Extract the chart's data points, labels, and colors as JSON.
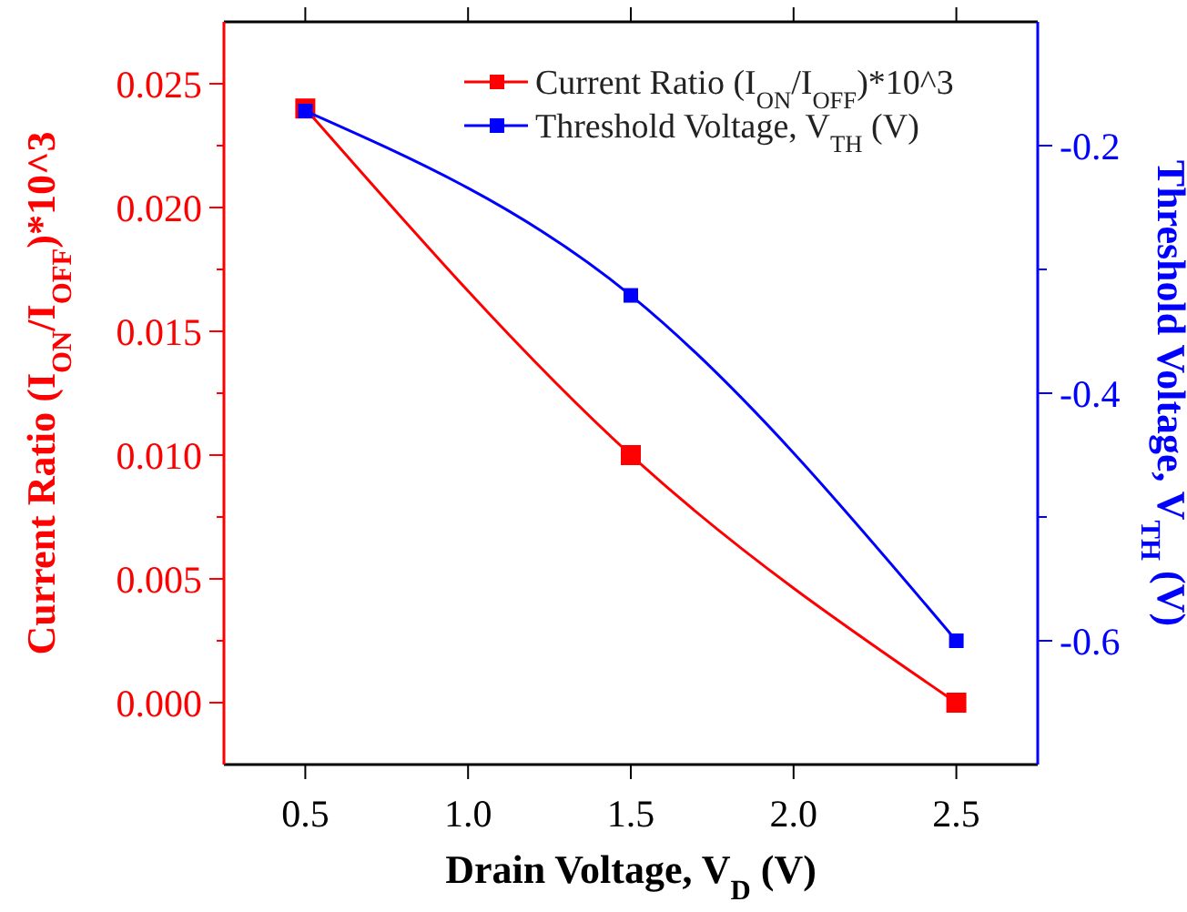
{
  "chart_data": {
    "type": "line",
    "xlabel": "Drain Voltage, V$_{D}$ (V)",
    "ylabel": "Current Ratio (I$_{ON}$/I$_{OFF}$)*10^3",
    "y2label": "Threshold Voltage, V$_{TH}$ (V)",
    "x": [
      0.5,
      1.5,
      2.5
    ],
    "xlim": [
      0.25,
      2.75
    ],
    "xticks": [
      0.5,
      {
        "value": 1,
        "label": "1.0"
      },
      1.5,
      {
        "value": 2,
        "label": "2.0"
      },
      2.5
    ],
    "ylim": [
      -0.0025,
      0.0275
    ],
    "yticks": [
      {
        "value": 0,
        "label": "0.000"
      },
      0.005,
      {
        "value": 0.01,
        "label": "0.010"
      },
      0.015,
      {
        "value": 0.02,
        "label": "0.020"
      },
      0.025
    ],
    "y2lim": [
      -0.7,
      -0.1
    ],
    "y2ticks": [
      -0.6,
      {
        "value": -0.5,
        "label": null
      },
      -0.4,
      {
        "value": -0.3,
        "label": null
      },
      -0.2
    ],
    "series": [
      {
        "name": "Current Ratio (I$_{ON}$/I$_{OFF}$)*10^3",
        "color": "#ff0000",
        "values": [
          0.024,
          0.01,
          0.0
        ]
      },
      {
        "name": "Threshold Voltage, V$_{TH}$ (V)",
        "color": "#0000ff",
        "axis": "y2",
        "values": [
          -0.172,
          -0.321,
          -0.6
        ]
      }
    ],
    "marker": "square",
    "line_style": "solid",
    "legend": "top right",
    "grid": false
  }
}
